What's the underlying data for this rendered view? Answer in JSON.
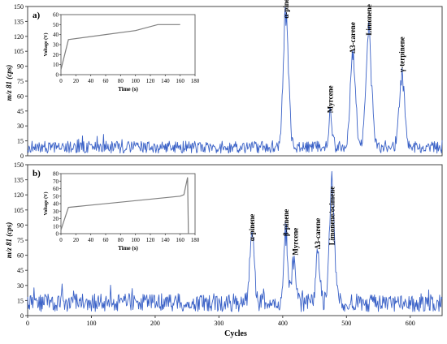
{
  "figure": {
    "y_axis_label_top": "m/z 81 (cps)",
    "y_axis_label_bottom": "m/z 81 (cps)",
    "x_axis_label": "Cycles"
  },
  "colors": {
    "signal": "#3b62c7",
    "inset_line": "#7f7f7f",
    "axis": "#444444",
    "text": "#000000"
  },
  "chart_data": [
    {
      "id": "panel-a",
      "type": "line",
      "panel_label": "a)",
      "ylabel": "m/z 81 (cps)",
      "xlabel": "",
      "xlim": [
        0,
        650
      ],
      "ylim": [
        0,
        150
      ],
      "yticks": [
        0,
        15,
        30,
        45,
        60,
        75,
        90,
        105,
        120,
        135,
        150
      ],
      "xticks": [],
      "grid": false,
      "series": [
        {
          "baseline": 8,
          "noise": 6,
          "noise_seed": 7,
          "peaks": [
            {
              "x": 405,
              "height": 140,
              "width": 4
            },
            {
              "x": 475,
              "height": 38,
              "width": 2.5
            },
            {
              "x": 510,
              "height": 98,
              "width": 4
            },
            {
              "x": 535,
              "height": 115,
              "width": 4.5
            },
            {
              "x": 587,
              "height": 78,
              "width": 4
            }
          ]
        }
      ],
      "annotations": [
        {
          "text": "α-pinene",
          "x": 405,
          "y": 138
        },
        {
          "text": "Myrcene",
          "x": 475,
          "y": 43
        },
        {
          "text": "Δ3-carene",
          "x": 510,
          "y": 103
        },
        {
          "text": "Limonene",
          "x": 535,
          "y": 121
        },
        {
          "text": "γ-terpinene",
          "x": 587,
          "y": 84
        }
      ],
      "inset": {
        "type": "line",
        "xlabel": "Time (s)",
        "ylabel": "Voltage (V)",
        "xlim": [
          0,
          180
        ],
        "ylim": [
          0,
          60
        ],
        "xticks": [
          0,
          20,
          40,
          60,
          80,
          100,
          120,
          140,
          160,
          180
        ],
        "yticks": [
          0,
          10,
          20,
          30,
          40,
          50,
          60
        ],
        "x": [
          0,
          10,
          100,
          130,
          160
        ],
        "y": [
          5,
          35,
          44,
          50,
          50
        ]
      }
    },
    {
      "id": "panel-b",
      "type": "line",
      "panel_label": "b)",
      "ylabel": "m/z 81 (cps)",
      "xlabel": "Cycles",
      "xlim": [
        0,
        650
      ],
      "ylim": [
        0,
        150
      ],
      "yticks": [
        0,
        15,
        30,
        45,
        60,
        75,
        90,
        105,
        120,
        135,
        150
      ],
      "xticks": [
        0,
        100,
        200,
        300,
        400,
        500,
        600
      ],
      "grid": false,
      "series": [
        {
          "baseline": 12,
          "noise": 9,
          "noise_seed": 19,
          "peaks": [
            {
              "x": 352,
              "height": 68,
              "width": 3.5
            },
            {
              "x": 405,
              "height": 72,
              "width": 3
            },
            {
              "x": 417,
              "height": 45,
              "width": 3
            },
            {
              "x": 455,
              "height": 52,
              "width": 3
            },
            {
              "x": 477,
              "height": 118,
              "width": 4
            }
          ]
        }
      ],
      "annotations": [
        {
          "text": "α-pinene",
          "x": 352,
          "y": 74
        },
        {
          "text": "β-pinene",
          "x": 405,
          "y": 79
        },
        {
          "text": "Myrcene",
          "x": 420,
          "y": 60
        },
        {
          "text": "Δ3-carene",
          "x": 455,
          "y": 66
        },
        {
          "text": "Limonene/ocimene",
          "x": 477,
          "y": 70
        }
      ],
      "inset": {
        "type": "line",
        "xlabel": "Time (s)",
        "ylabel": "Voltage (V)",
        "xlim": [
          0,
          180
        ],
        "ylim": [
          0,
          80
        ],
        "xticks": [
          0,
          20,
          40,
          60,
          80,
          100,
          120,
          140,
          160,
          180
        ],
        "yticks": [
          0,
          10,
          20,
          30,
          40,
          50,
          60,
          70,
          80
        ],
        "x": [
          0,
          10,
          160,
          165,
          170,
          171
        ],
        "y": [
          5,
          35,
          50,
          52,
          75,
          0
        ]
      }
    }
  ]
}
